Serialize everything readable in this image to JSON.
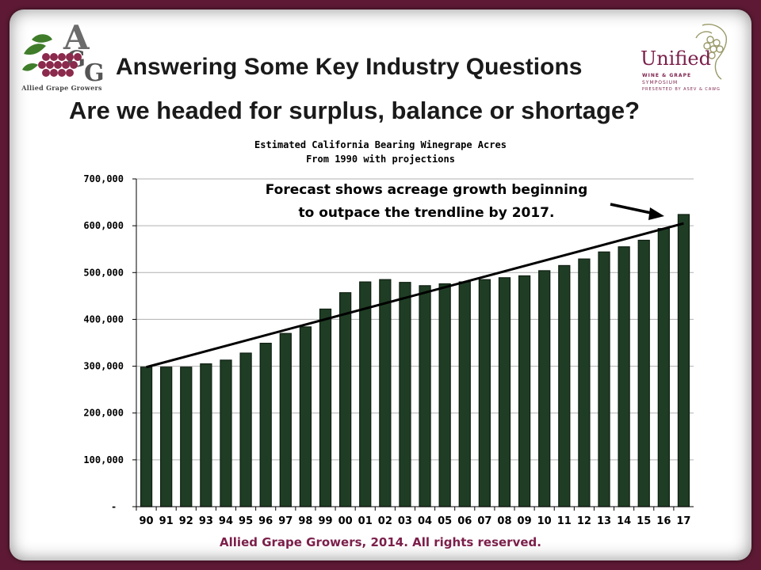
{
  "slide": {
    "heading": "Answering Some Key Industry Questions",
    "subheading": "Are we headed for surplus, balance or shortage?",
    "footer": "Allied Grape Growers, 2014.  All rights reserved.",
    "logo_left": {
      "letters": "AGG",
      "name": "Allied Grape Growers"
    },
    "logo_right": {
      "word": "Unified",
      "line1": "WINE & GRAPE",
      "line2": "SYMPOSIUM",
      "line3": "PRESENTED BY ASEV & CAWG"
    }
  },
  "colors": {
    "frame": "#5e1a34",
    "bar_fill": "#1f3d24",
    "bar_stroke": "#0f1f12",
    "brand": "#7b1f4a",
    "grape": "#8b2a4c",
    "leaf": "#3f7d2a"
  },
  "chart_data": {
    "type": "bar",
    "title": "Estimated California Bearing Winegrape Acres",
    "subtitle": "From 1990 with projections",
    "annotation": "Forecast shows acreage growth beginning to outpace the trendline by 2017.",
    "annotation_lines": [
      "Forecast shows acreage growth beginning",
      "to outpace the trendline by 2017."
    ],
    "categories": [
      "90",
      "91",
      "92",
      "93",
      "94",
      "95",
      "96",
      "97",
      "98",
      "99",
      "00",
      "01",
      "02",
      "03",
      "04",
      "05",
      "06",
      "07",
      "08",
      "09",
      "10",
      "11",
      "12",
      "13",
      "14",
      "15",
      "16",
      "17"
    ],
    "values": [
      298000,
      298000,
      298000,
      305000,
      313000,
      328000,
      349000,
      370000,
      384000,
      422000,
      457000,
      480000,
      485000,
      479000,
      472000,
      476000,
      480000,
      485000,
      489000,
      493000,
      504000,
      515000,
      529000,
      544000,
      555000,
      569000,
      594000,
      624000
    ],
    "trendline": {
      "start": 298000,
      "end": 605000
    },
    "ylim": [
      0,
      700000
    ],
    "yticks": [
      0,
      100000,
      200000,
      300000,
      400000,
      500000,
      600000,
      700000
    ],
    "ytick_labels": [
      "-",
      "100,000",
      "200,000",
      "300,000",
      "400,000",
      "500,000",
      "600,000",
      "700,000"
    ],
    "grid": true,
    "legend": "none"
  }
}
